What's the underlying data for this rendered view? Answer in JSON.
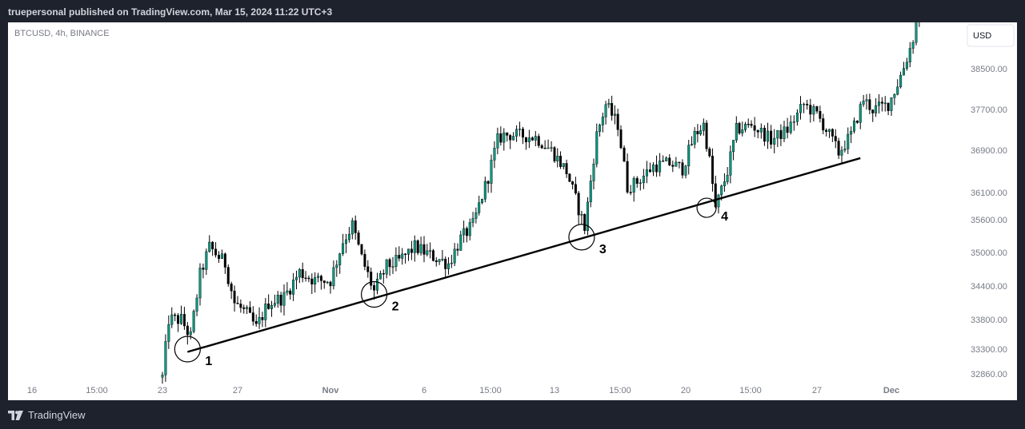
{
  "header": {
    "published_text": "truepersonal published on TradingView.com, Mar 15, 2024 11:22 UTC+3"
  },
  "footer": {
    "brand": "TradingView",
    "logo_icon": "tradingview-logo-icon"
  },
  "chart_data": {
    "type": "candlestick",
    "symbol_label": "BTCUSD, 4h, BINANCE",
    "currency_label": "USD",
    "y_ticks": [
      38500,
      37700,
      36900,
      36100,
      35600,
      35000,
      34400,
      33800,
      33300,
      32860
    ],
    "y_tick_labels": [
      "38500.00",
      "37700.00",
      "36900.00",
      "36100.00",
      "35600.00",
      "35000.00",
      "34400.00",
      "33800.00",
      "33300.00",
      "32860.00"
    ],
    "x_tick_labels": [
      "16",
      "15:00",
      "23",
      "27",
      "Nov",
      "6",
      "15:00",
      "13",
      "15:00",
      "20",
      "15:00",
      "27",
      "Dec"
    ],
    "x_tick_dates": [
      "2023-10-16",
      "2023-10-19 15:00",
      "2023-10-23",
      "2023-10-27",
      "2023-11-01",
      "2023-11-06",
      "2023-11-09 15:00",
      "2023-11-13",
      "2023-11-16 15:00",
      "2023-11-20",
      "2023-11-23 15:00",
      "2023-11-27",
      "2023-12-01"
    ],
    "up_color": "#089981",
    "down_color": "#000000",
    "trendline": {
      "start": {
        "time": "2023-10-24 08:00",
        "price": 33250
      },
      "end": {
        "time": "2023-11-29 08:00",
        "price": 36750
      }
    },
    "touch_points": [
      {
        "label": "1",
        "time": "2023-10-24 08:00",
        "price": 33300
      },
      {
        "label": "2",
        "time": "2023-11-03 08:00",
        "price": 34250
      },
      {
        "label": "3",
        "time": "2023-11-14 12:00",
        "price": 35280
      },
      {
        "label": "4",
        "time": "2023-11-21 04:00",
        "price": 35820
      }
    ],
    "anchors": [
      [
        "2023-10-23 00:00",
        32800
      ],
      [
        "2023-10-23 08:00",
        33800
      ],
      [
        "2023-10-24 00:00",
        33800
      ],
      [
        "2023-10-24 12:00",
        33500
      ],
      [
        "2023-10-25 00:00",
        34600
      ],
      [
        "2023-10-25 12:00",
        35100
      ],
      [
        "2023-10-26 08:00",
        34800
      ],
      [
        "2023-10-26 20:00",
        34100
      ],
      [
        "2023-10-27 12:00",
        33900
      ],
      [
        "2023-10-28 00:00",
        33650
      ],
      [
        "2023-10-28 16:00",
        34100
      ],
      [
        "2023-10-29 12:00",
        34200
      ],
      [
        "2023-10-30 08:00",
        34650
      ],
      [
        "2023-10-31 04:00",
        34500
      ],
      [
        "2023-11-01 00:00",
        34500
      ],
      [
        "2023-11-01 16:00",
        35200
      ],
      [
        "2023-11-02 04:00",
        35500
      ],
      [
        "2023-11-02 16:00",
        34900
      ],
      [
        "2023-11-03 08:00",
        34300
      ],
      [
        "2023-11-04 00:00",
        34750
      ],
      [
        "2023-11-04 16:00",
        34850
      ],
      [
        "2023-11-05 12:00",
        35100
      ],
      [
        "2023-11-06 08:00",
        34950
      ],
      [
        "2023-11-07 08:00",
        34800
      ],
      [
        "2023-11-08 00:00",
        35250
      ],
      [
        "2023-11-08 16:00",
        35500
      ],
      [
        "2023-11-09 12:00",
        36400
      ],
      [
        "2023-11-10 00:00",
        37100
      ],
      [
        "2023-11-10 08:00",
        37200
      ],
      [
        "2023-11-11 00:00",
        37200
      ],
      [
        "2023-11-12 00:00",
        37150
      ],
      [
        "2023-11-12 20:00",
        36900
      ],
      [
        "2023-11-13 16:00",
        36500
      ],
      [
        "2023-11-14 08:00",
        35800
      ],
      [
        "2023-11-14 16:00",
        35450
      ],
      [
        "2023-11-15 08:00",
        37200
      ],
      [
        "2023-11-15 20:00",
        37800
      ],
      [
        "2023-11-16 12:00",
        37400
      ],
      [
        "2023-11-17 00:00",
        36200
      ],
      [
        "2023-11-17 12:00",
        36300
      ],
      [
        "2023-11-18 08:00",
        36600
      ],
      [
        "2023-11-19 04:00",
        36650
      ],
      [
        "2023-11-19 20:00",
        36550
      ],
      [
        "2023-11-20 12:00",
        37200
      ],
      [
        "2023-11-21 00:00",
        37400
      ],
      [
        "2023-11-21 08:00",
        36700
      ],
      [
        "2023-11-21 16:00",
        35800
      ],
      [
        "2023-11-22 08:00",
        36500
      ],
      [
        "2023-11-22 20:00",
        37300
      ],
      [
        "2023-11-23 16:00",
        37400
      ],
      [
        "2023-11-24 16:00",
        37100
      ],
      [
        "2023-11-25 12:00",
        37300
      ],
      [
        "2023-11-26 08:00",
        37800
      ],
      [
        "2023-11-27 00:00",
        37600
      ],
      [
        "2023-11-27 16:00",
        37200
      ],
      [
        "2023-11-28 04:00",
        36850
      ],
      [
        "2023-11-28 20:00",
        37200
      ],
      [
        "2023-11-29 12:00",
        37900
      ],
      [
        "2023-11-30 00:00",
        37700
      ],
      [
        "2023-11-30 20:00",
        37800
      ],
      [
        "2023-12-01 08:00",
        38200
      ],
      [
        "2023-12-01 20:00",
        38700
      ],
      [
        "2023-12-02 04:00",
        39100
      ],
      [
        "2023-12-02 12:00",
        39700
      ]
    ]
  }
}
